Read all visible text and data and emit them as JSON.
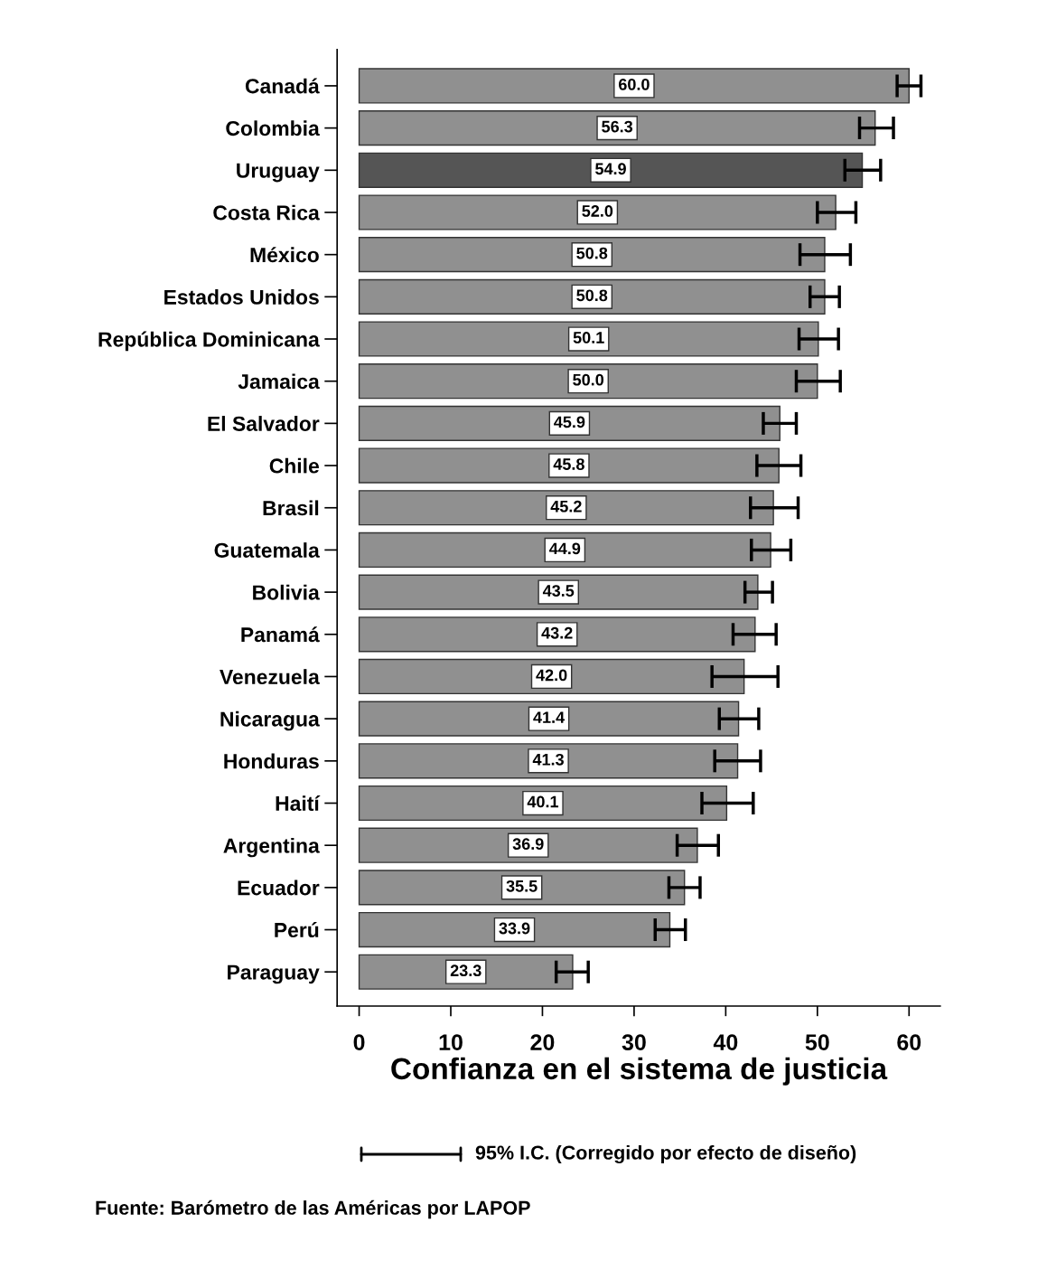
{
  "chart_data": {
    "type": "bar",
    "orientation": "horizontal",
    "xlabel": "Confianza en el sistema de justicia",
    "categories": [
      "Canadá",
      "Colombia",
      "Uruguay",
      "Costa Rica",
      "México",
      "Estados Unidos",
      "República Dominicana",
      "Jamaica",
      "El Salvador",
      "Chile",
      "Brasil",
      "Guatemala",
      "Bolivia",
      "Panamá",
      "Venezuela",
      "Nicaragua",
      "Honduras",
      "Haití",
      "Argentina",
      "Ecuador",
      "Perú",
      "Paraguay"
    ],
    "values": [
      60.0,
      56.3,
      54.9,
      52.0,
      50.8,
      50.8,
      50.1,
      50.0,
      45.9,
      45.8,
      45.2,
      44.9,
      43.5,
      43.2,
      42.0,
      41.4,
      41.3,
      40.1,
      36.9,
      35.5,
      33.9,
      23.3
    ],
    "errors": [
      [
        58.7,
        61.3
      ],
      [
        54.6,
        58.3
      ],
      [
        53.0,
        56.9
      ],
      [
        50.0,
        54.2
      ],
      [
        48.1,
        53.6
      ],
      [
        49.2,
        52.4
      ],
      [
        48.0,
        52.3
      ],
      [
        47.7,
        52.5
      ],
      [
        44.1,
        47.7
      ],
      [
        43.4,
        48.2
      ],
      [
        42.7,
        47.9
      ],
      [
        42.8,
        47.1
      ],
      [
        42.1,
        45.1
      ],
      [
        40.8,
        45.5
      ],
      [
        38.5,
        45.7
      ],
      [
        39.3,
        43.6
      ],
      [
        38.8,
        43.8
      ],
      [
        37.4,
        43.0
      ],
      [
        34.7,
        39.2
      ],
      [
        33.8,
        37.2
      ],
      [
        32.3,
        35.6
      ],
      [
        21.5,
        25.0
      ]
    ],
    "colors": [
      "#909090",
      "#909090",
      "#555555",
      "#909090",
      "#909090",
      "#909090",
      "#909090",
      "#909090",
      "#909090",
      "#909090",
      "#909090",
      "#909090",
      "#909090",
      "#909090",
      "#909090",
      "#909090",
      "#909090",
      "#909090",
      "#909090",
      "#909090",
      "#909090",
      "#909090"
    ],
    "value_labels": [
      "60.0",
      "56.3",
      "54.9",
      "52.0",
      "50.8",
      "50.8",
      "50.1",
      "50.0",
      "45.9",
      "45.8",
      "45.2",
      "44.9",
      "43.5",
      "43.2",
      "42.0",
      "41.4",
      "41.3",
      "40.1",
      "36.9",
      "35.5",
      "33.9",
      "23.3"
    ],
    "xlim": [
      -2.4,
      63.4
    ],
    "xticks": [
      0,
      10,
      20,
      30,
      40,
      50,
      60
    ],
    "grid": false,
    "legend": false,
    "annotations": [
      "95% I.C. (Corregido por efecto de diseño)",
      "Fuente: Barómetro de las Américas por LAPOP"
    ]
  }
}
